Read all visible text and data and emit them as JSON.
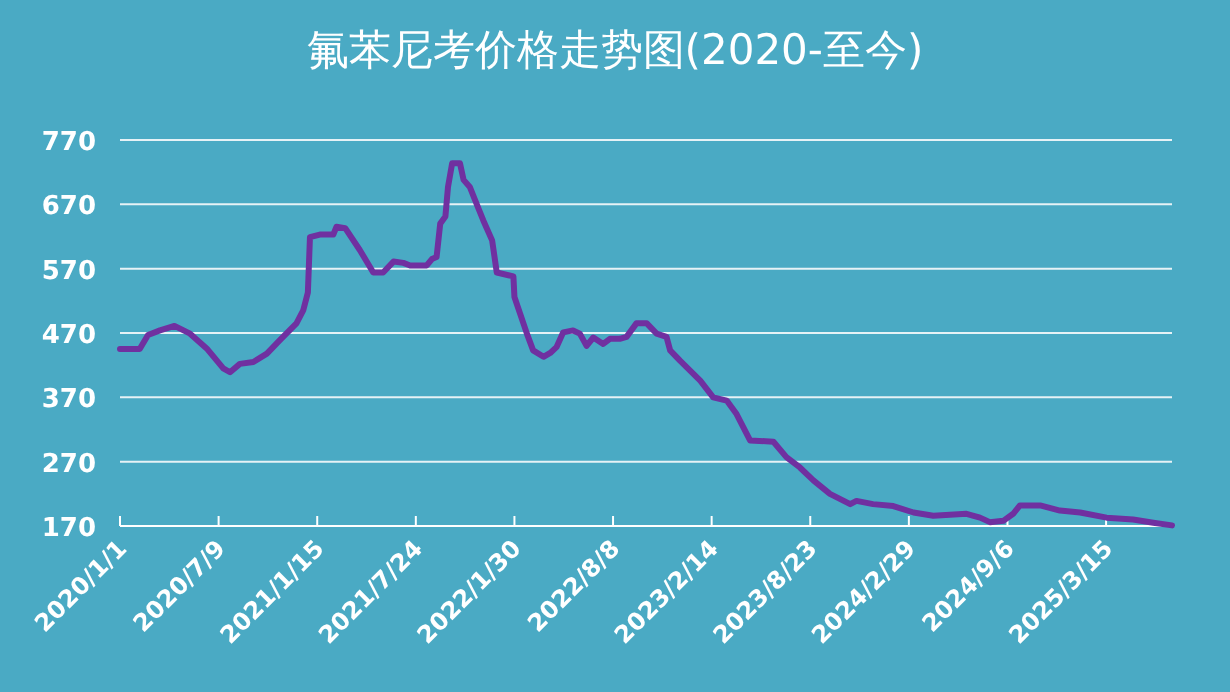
{
  "chart_data": {
    "type": "line",
    "title": "氟苯尼考价格走势图(2020-至今)",
    "x": [
      "2020-01-01",
      "2020-02-08",
      "2020-02-24",
      "2020-03-18",
      "2020-04-15",
      "2020-05-15",
      "2020-06-16",
      "2020-07-18",
      "2020-07-31",
      "2020-08-19",
      "2020-09-14",
      "2020-10-10",
      "2020-11-04",
      "2020-12-06",
      "2020-12-19",
      "2020-12-28",
      "2021-01-01",
      "2021-01-20",
      "2021-02-15",
      "2021-02-21",
      "2021-03-10",
      "2021-04-07",
      "2021-05-03",
      "2021-05-22",
      "2021-06-11",
      "2021-06-30",
      "2021-07-13",
      "2021-08-14",
      "2021-08-24",
      "2021-09-02",
      "2021-09-09",
      "2021-09-19",
      "2021-09-24",
      "2021-10-02",
      "2021-10-17",
      "2021-10-24",
      "2021-11-05",
      "2021-11-14",
      "2021-12-01",
      "2021-12-18",
      "2021-12-27",
      "2022-01-28",
      "2022-01-30",
      "2022-02-10",
      "2022-02-23",
      "2022-03-07",
      "2022-03-27",
      "2022-04-09",
      "2022-04-21",
      "2022-05-04",
      "2022-05-23",
      "2022-06-05",
      "2022-06-18",
      "2022-07-01",
      "2022-07-20",
      "2022-08-02",
      "2022-08-21",
      "2022-09-03",
      "2022-09-22",
      "2022-10-12",
      "2022-10-31",
      "2022-11-19",
      "2022-11-26",
      "2022-12-15",
      "2023-01-03",
      "2023-01-23",
      "2023-02-17",
      "2023-03-15",
      "2023-04-03",
      "2023-04-29",
      "2023-06-13",
      "2023-07-08",
      "2023-08-03",
      "2023-08-29",
      "2023-09-30",
      "2023-11-08",
      "2023-11-20",
      "2023-12-22",
      "2024-01-30",
      "2024-03-09",
      "2024-04-16",
      "2024-06-19",
      "2024-07-15",
      "2024-08-03",
      "2024-08-29",
      "2024-09-17",
      "2024-09-30",
      "2024-11-08",
      "2024-12-16",
      "2025-01-24",
      "2025-03-16",
      "2025-05-06",
      "2025-06-14",
      "2025-07-20"
    ],
    "series": [
      {
        "color": "#7030a0",
        "values": [
          445,
          445,
          467,
          474,
          481,
          469,
          446,
          415,
          409,
          422,
          425,
          438,
          459,
          485,
          505,
          533,
          619,
          623,
          623,
          635,
          633,
          599,
          564,
          564,
          581,
          579,
          575,
          575,
          585,
          588,
          640,
          651,
          697,
          734,
          734,
          708,
          697,
          679,
          645,
          614,
          564,
          558,
          526,
          500,
          469,
          443,
          433,
          439,
          448,
          471,
          474,
          469,
          450,
          463,
          453,
          461,
          461,
          464,
          485,
          485,
          469,
          464,
          443,
          427,
          412,
          396,
          370,
          365,
          344,
          303,
          301,
          277,
          261,
          241,
          220,
          204,
          209,
          204,
          201,
          191,
          186,
          189,
          183,
          176,
          178,
          189,
          202,
          202,
          194,
          191,
          183,
          180,
          175,
          171
        ]
      }
    ],
    "xlim": [
      "2020-01-01",
      "2025-07-20"
    ],
    "xticks": [
      {
        "value": "2020-01-01",
        "label": "2020/1/1"
      },
      {
        "value": "2020-07-09",
        "label": "2020/7/9"
      },
      {
        "value": "2021-01-15",
        "label": "2021/1/15"
      },
      {
        "value": "2021-07-24",
        "label": "2021/7/24"
      },
      {
        "value": "2022-01-30",
        "label": "2022/1/30"
      },
      {
        "value": "2022-08-08",
        "label": "2022/8/8"
      },
      {
        "value": "2023-02-14",
        "label": "2023/2/14"
      },
      {
        "value": "2023-08-23",
        "label": "2023/8/23"
      },
      {
        "value": "2024-02-29",
        "label": "2024/2/29"
      },
      {
        "value": "2024-09-06",
        "label": "2024/9/6"
      },
      {
        "value": "2025-03-15",
        "label": "2025/3/15"
      }
    ],
    "ylim": [
      170,
      770
    ],
    "yticks": [
      170,
      270,
      370,
      470,
      570,
      670,
      770
    ],
    "grid": "y"
  }
}
